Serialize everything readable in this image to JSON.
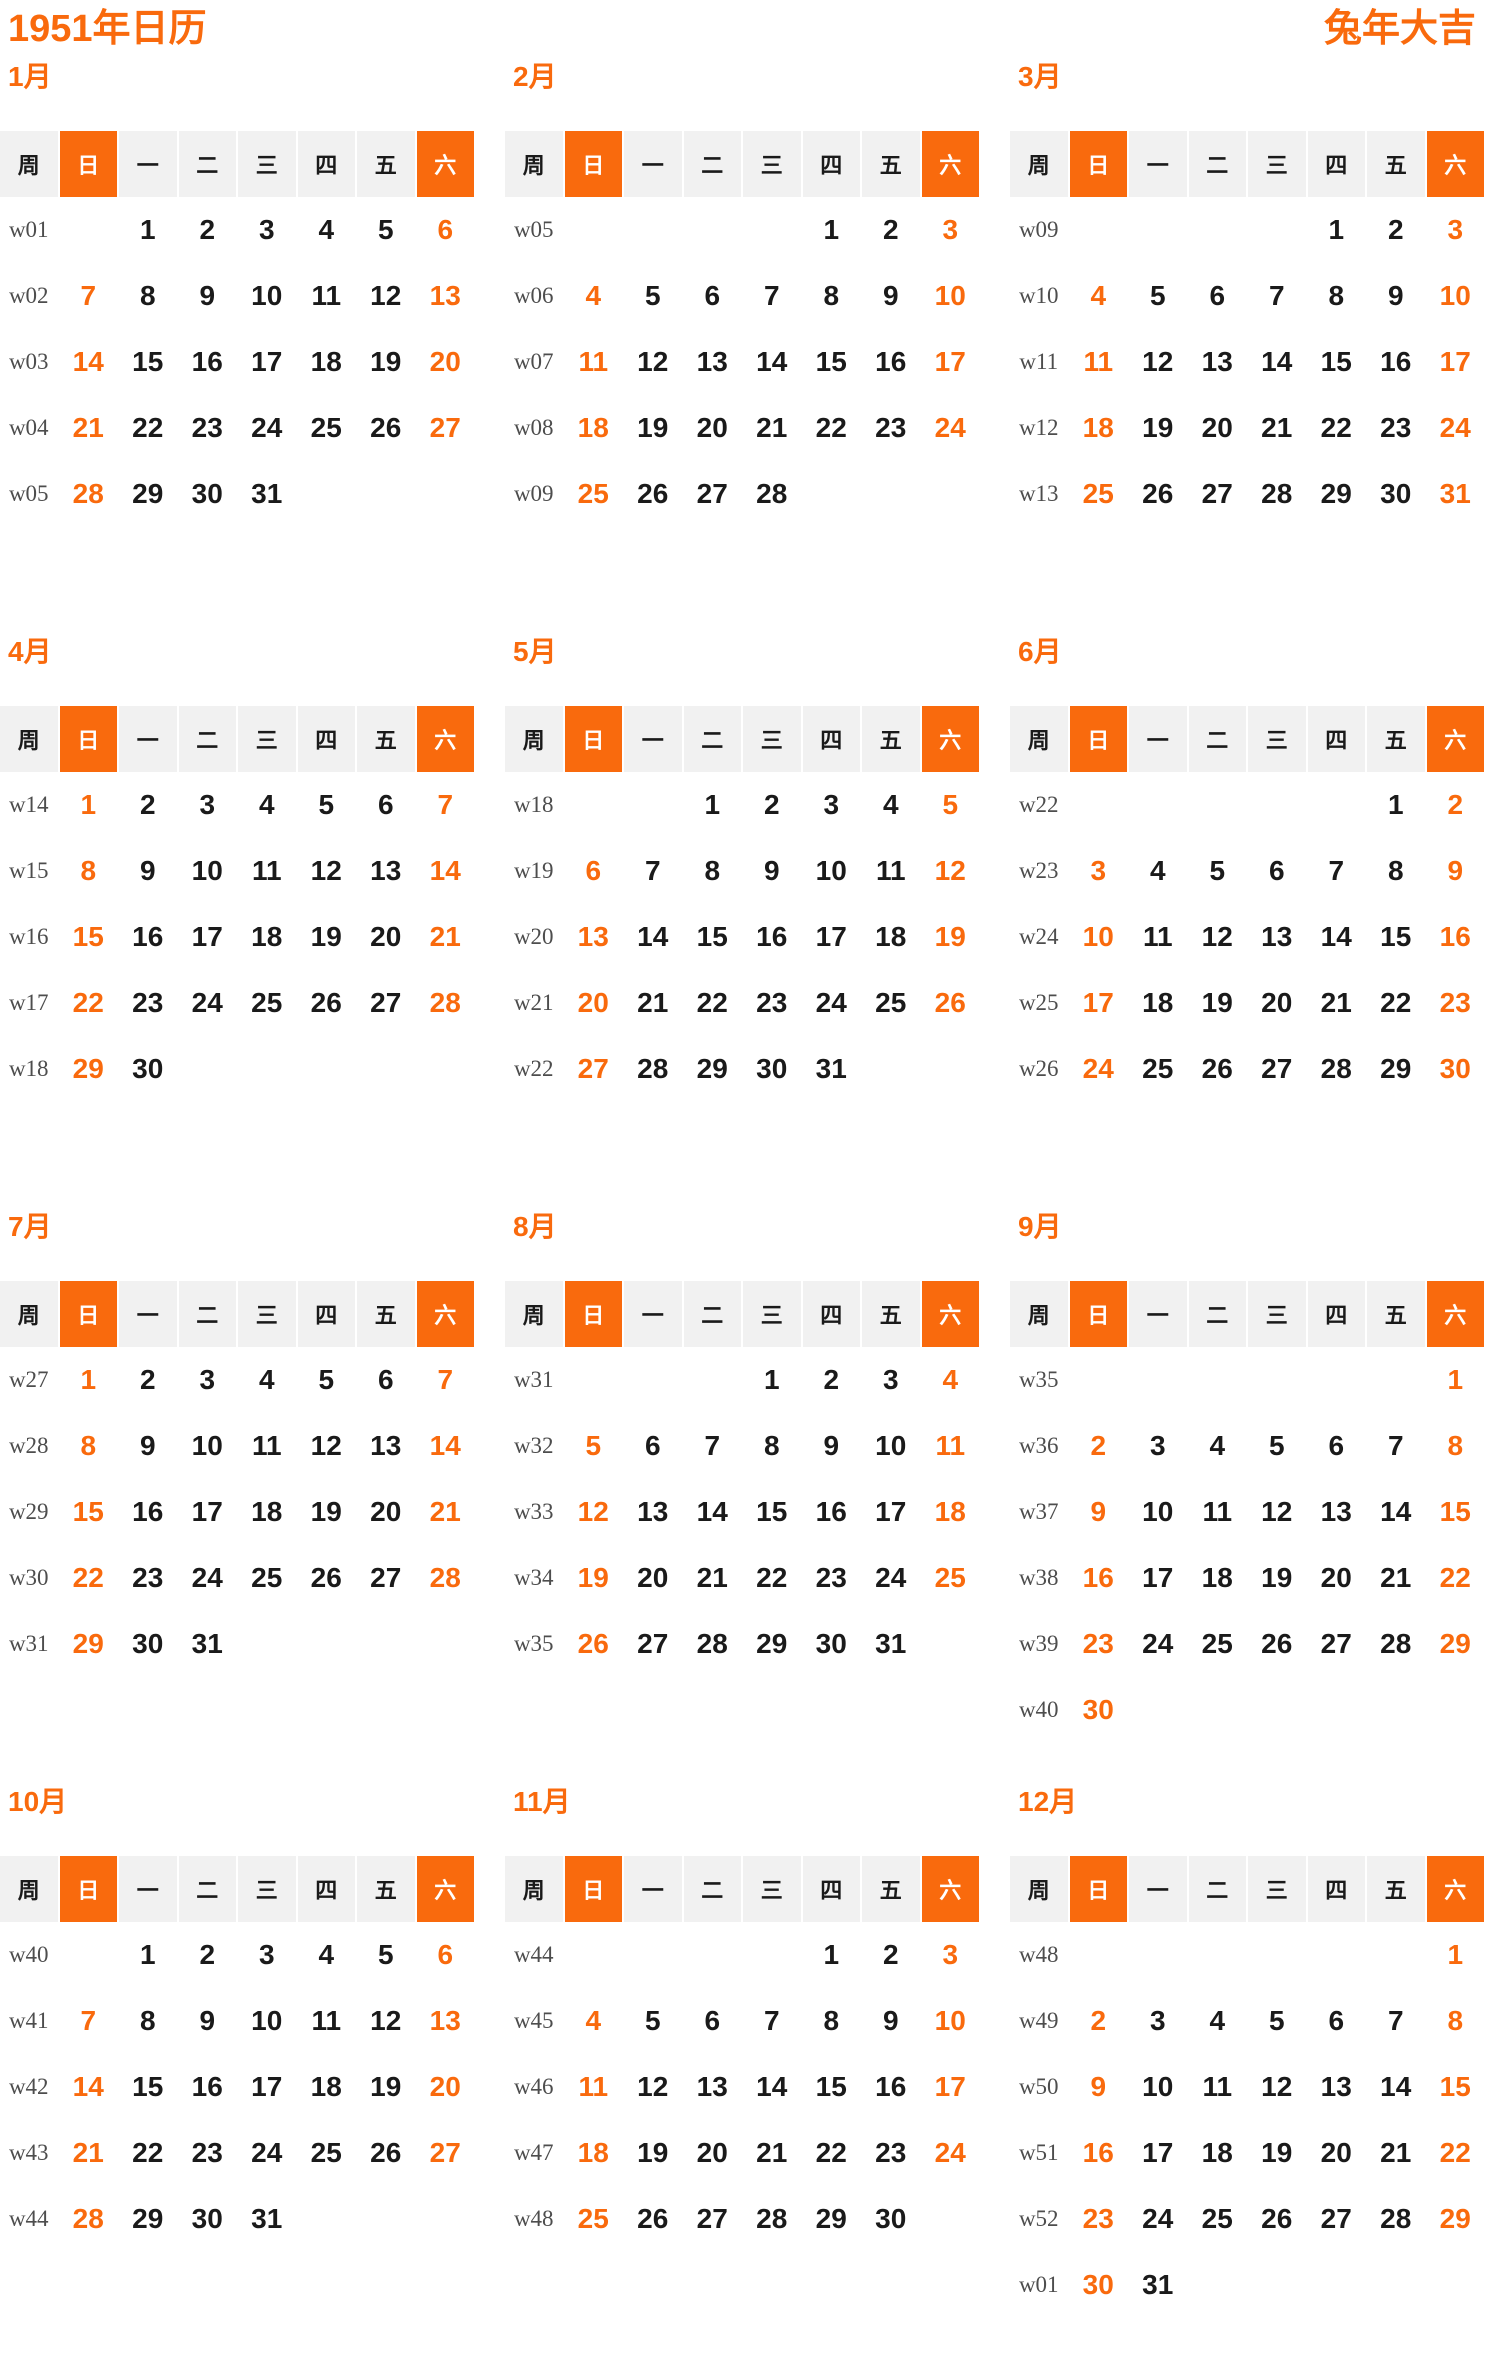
{
  "page": {
    "title_left": "1951年日历",
    "title_right": "兔年大吉"
  },
  "colors": {
    "accent": "#F96A0D",
    "header_bg": "#F1F1F1",
    "day_text": "#1A1A1A",
    "week_text": "#4D4D4D"
  },
  "weekday_headers": [
    "周",
    "日",
    "一",
    "二",
    "三",
    "四",
    "五",
    "六"
  ],
  "months": [
    {
      "label": "1月",
      "weeks": [
        {
          "w": "w01",
          "days": [
            "",
            "1",
            "2",
            "3",
            "4",
            "5",
            "6"
          ]
        },
        {
          "w": "w02",
          "days": [
            "7",
            "8",
            "9",
            "10",
            "11",
            "12",
            "13"
          ]
        },
        {
          "w": "w03",
          "days": [
            "14",
            "15",
            "16",
            "17",
            "18",
            "19",
            "20"
          ]
        },
        {
          "w": "w04",
          "days": [
            "21",
            "22",
            "23",
            "24",
            "25",
            "26",
            "27"
          ]
        },
        {
          "w": "w05",
          "days": [
            "28",
            "29",
            "30",
            "31",
            "",
            "",
            ""
          ]
        }
      ]
    },
    {
      "label": "2月",
      "weeks": [
        {
          "w": "w05",
          "days": [
            "",
            "",
            "",
            "",
            "1",
            "2",
            "3"
          ]
        },
        {
          "w": "w06",
          "days": [
            "4",
            "5",
            "6",
            "7",
            "8",
            "9",
            "10"
          ]
        },
        {
          "w": "w07",
          "days": [
            "11",
            "12",
            "13",
            "14",
            "15",
            "16",
            "17"
          ]
        },
        {
          "w": "w08",
          "days": [
            "18",
            "19",
            "20",
            "21",
            "22",
            "23",
            "24"
          ]
        },
        {
          "w": "w09",
          "days": [
            "25",
            "26",
            "27",
            "28",
            "",
            "",
            ""
          ]
        }
      ]
    },
    {
      "label": "3月",
      "weeks": [
        {
          "w": "w09",
          "days": [
            "",
            "",
            "",
            "",
            "1",
            "2",
            "3"
          ]
        },
        {
          "w": "w10",
          "days": [
            "4",
            "5",
            "6",
            "7",
            "8",
            "9",
            "10"
          ]
        },
        {
          "w": "w11",
          "days": [
            "11",
            "12",
            "13",
            "14",
            "15",
            "16",
            "17"
          ]
        },
        {
          "w": "w12",
          "days": [
            "18",
            "19",
            "20",
            "21",
            "22",
            "23",
            "24"
          ]
        },
        {
          "w": "w13",
          "days": [
            "25",
            "26",
            "27",
            "28",
            "29",
            "30",
            "31"
          ]
        }
      ]
    },
    {
      "label": "4月",
      "weeks": [
        {
          "w": "w14",
          "days": [
            "1",
            "2",
            "3",
            "4",
            "5",
            "6",
            "7"
          ]
        },
        {
          "w": "w15",
          "days": [
            "8",
            "9",
            "10",
            "11",
            "12",
            "13",
            "14"
          ]
        },
        {
          "w": "w16",
          "days": [
            "15",
            "16",
            "17",
            "18",
            "19",
            "20",
            "21"
          ]
        },
        {
          "w": "w17",
          "days": [
            "22",
            "23",
            "24",
            "25",
            "26",
            "27",
            "28"
          ]
        },
        {
          "w": "w18",
          "days": [
            "29",
            "30",
            "",
            "",
            "",
            "",
            ""
          ]
        }
      ]
    },
    {
      "label": "5月",
      "weeks": [
        {
          "w": "w18",
          "days": [
            "",
            "",
            "1",
            "2",
            "3",
            "4",
            "5"
          ]
        },
        {
          "w": "w19",
          "days": [
            "6",
            "7",
            "8",
            "9",
            "10",
            "11",
            "12"
          ]
        },
        {
          "w": "w20",
          "days": [
            "13",
            "14",
            "15",
            "16",
            "17",
            "18",
            "19"
          ]
        },
        {
          "w": "w21",
          "days": [
            "20",
            "21",
            "22",
            "23",
            "24",
            "25",
            "26"
          ]
        },
        {
          "w": "w22",
          "days": [
            "27",
            "28",
            "29",
            "30",
            "31",
            "",
            ""
          ]
        }
      ]
    },
    {
      "label": "6月",
      "weeks": [
        {
          "w": "w22",
          "days": [
            "",
            "",
            "",
            "",
            "",
            "1",
            "2"
          ]
        },
        {
          "w": "w23",
          "days": [
            "3",
            "4",
            "5",
            "6",
            "7",
            "8",
            "9"
          ]
        },
        {
          "w": "w24",
          "days": [
            "10",
            "11",
            "12",
            "13",
            "14",
            "15",
            "16"
          ]
        },
        {
          "w": "w25",
          "days": [
            "17",
            "18",
            "19",
            "20",
            "21",
            "22",
            "23"
          ]
        },
        {
          "w": "w26",
          "days": [
            "24",
            "25",
            "26",
            "27",
            "28",
            "29",
            "30"
          ]
        }
      ]
    },
    {
      "label": "7月",
      "weeks": [
        {
          "w": "w27",
          "days": [
            "1",
            "2",
            "3",
            "4",
            "5",
            "6",
            "7"
          ]
        },
        {
          "w": "w28",
          "days": [
            "8",
            "9",
            "10",
            "11",
            "12",
            "13",
            "14"
          ]
        },
        {
          "w": "w29",
          "days": [
            "15",
            "16",
            "17",
            "18",
            "19",
            "20",
            "21"
          ]
        },
        {
          "w": "w30",
          "days": [
            "22",
            "23",
            "24",
            "25",
            "26",
            "27",
            "28"
          ]
        },
        {
          "w": "w31",
          "days": [
            "29",
            "30",
            "31",
            "",
            "",
            "",
            ""
          ]
        }
      ]
    },
    {
      "label": "8月",
      "weeks": [
        {
          "w": "w31",
          "days": [
            "",
            "",
            "",
            "1",
            "2",
            "3",
            "4"
          ]
        },
        {
          "w": "w32",
          "days": [
            "5",
            "6",
            "7",
            "8",
            "9",
            "10",
            "11"
          ]
        },
        {
          "w": "w33",
          "days": [
            "12",
            "13",
            "14",
            "15",
            "16",
            "17",
            "18"
          ]
        },
        {
          "w": "w34",
          "days": [
            "19",
            "20",
            "21",
            "22",
            "23",
            "24",
            "25"
          ]
        },
        {
          "w": "w35",
          "days": [
            "26",
            "27",
            "28",
            "29",
            "30",
            "31",
            ""
          ]
        }
      ]
    },
    {
      "label": "9月",
      "weeks": [
        {
          "w": "w35",
          "days": [
            "",
            "",
            "",
            "",
            "",
            "",
            "1"
          ]
        },
        {
          "w": "w36",
          "days": [
            "2",
            "3",
            "4",
            "5",
            "6",
            "7",
            "8"
          ]
        },
        {
          "w": "w37",
          "days": [
            "9",
            "10",
            "11",
            "12",
            "13",
            "14",
            "15"
          ]
        },
        {
          "w": "w38",
          "days": [
            "16",
            "17",
            "18",
            "19",
            "20",
            "21",
            "22"
          ]
        },
        {
          "w": "w39",
          "days": [
            "23",
            "24",
            "25",
            "26",
            "27",
            "28",
            "29"
          ]
        },
        {
          "w": "w40",
          "days": [
            "30",
            "",
            "",
            "",
            "",
            "",
            ""
          ]
        }
      ]
    },
    {
      "label": "10月",
      "weeks": [
        {
          "w": "w40",
          "days": [
            "",
            "1",
            "2",
            "3",
            "4",
            "5",
            "6"
          ]
        },
        {
          "w": "w41",
          "days": [
            "7",
            "8",
            "9",
            "10",
            "11",
            "12",
            "13"
          ]
        },
        {
          "w": "w42",
          "days": [
            "14",
            "15",
            "16",
            "17",
            "18",
            "19",
            "20"
          ]
        },
        {
          "w": "w43",
          "days": [
            "21",
            "22",
            "23",
            "24",
            "25",
            "26",
            "27"
          ]
        },
        {
          "w": "w44",
          "days": [
            "28",
            "29",
            "30",
            "31",
            "",
            "",
            ""
          ]
        }
      ]
    },
    {
      "label": "11月",
      "weeks": [
        {
          "w": "w44",
          "days": [
            "",
            "",
            "",
            "",
            "1",
            "2",
            "3"
          ]
        },
        {
          "w": "w45",
          "days": [
            "4",
            "5",
            "6",
            "7",
            "8",
            "9",
            "10"
          ]
        },
        {
          "w": "w46",
          "days": [
            "11",
            "12",
            "13",
            "14",
            "15",
            "16",
            "17"
          ]
        },
        {
          "w": "w47",
          "days": [
            "18",
            "19",
            "20",
            "21",
            "22",
            "23",
            "24"
          ]
        },
        {
          "w": "w48",
          "days": [
            "25",
            "26",
            "27",
            "28",
            "29",
            "30",
            ""
          ]
        }
      ]
    },
    {
      "label": "12月",
      "weeks": [
        {
          "w": "w48",
          "days": [
            "",
            "",
            "",
            "",
            "",
            "",
            "1"
          ]
        },
        {
          "w": "w49",
          "days": [
            "2",
            "3",
            "4",
            "5",
            "6",
            "7",
            "8"
          ]
        },
        {
          "w": "w50",
          "days": [
            "9",
            "10",
            "11",
            "12",
            "13",
            "14",
            "15"
          ]
        },
        {
          "w": "w51",
          "days": [
            "16",
            "17",
            "18",
            "19",
            "20",
            "21",
            "22"
          ]
        },
        {
          "w": "w52",
          "days": [
            "23",
            "24",
            "25",
            "26",
            "27",
            "28",
            "29"
          ]
        },
        {
          "w": "w01",
          "days": [
            "30",
            "31",
            "",
            "",
            "",
            "",
            ""
          ]
        }
      ]
    }
  ]
}
